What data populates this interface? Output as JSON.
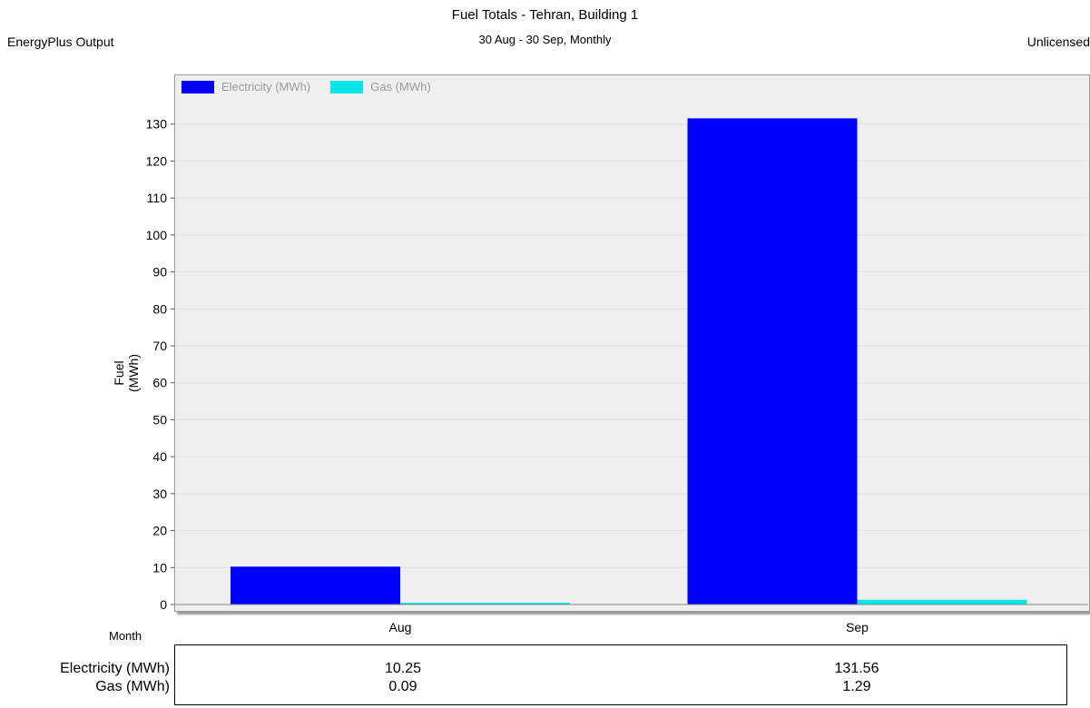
{
  "header": {
    "left": "EnergyPlus Output",
    "right": "Unlicensed"
  },
  "chart_data": {
    "type": "bar",
    "title": "Fuel Totals - Tehran, Building 1",
    "subtitle": "30 Aug - 30 Sep, Monthly",
    "xlabel": "Month",
    "ylabel": "Fuel (MWh)",
    "categories": [
      "Aug",
      "Sep"
    ],
    "series": [
      {
        "name": "Electricity (MWh)",
        "values": [
          10.25,
          131.56
        ],
        "color": "#0000ff"
      },
      {
        "name": "Gas (MWh)",
        "values": [
          0.09,
          1.29
        ],
        "color": "#00e5e5"
      }
    ],
    "ylim": [
      0,
      140
    ],
    "yticks": [
      0,
      10,
      20,
      30,
      40,
      50,
      60,
      70,
      80,
      90,
      100,
      110,
      120,
      130
    ],
    "legend_position": "top-left",
    "grid": true
  },
  "table": {
    "rows": [
      {
        "label": "Electricity (MWh)",
        "values": [
          "10.25",
          "131.56"
        ]
      },
      {
        "label": "Gas (MWh)",
        "values": [
          "0.09",
          "1.29"
        ]
      }
    ]
  }
}
